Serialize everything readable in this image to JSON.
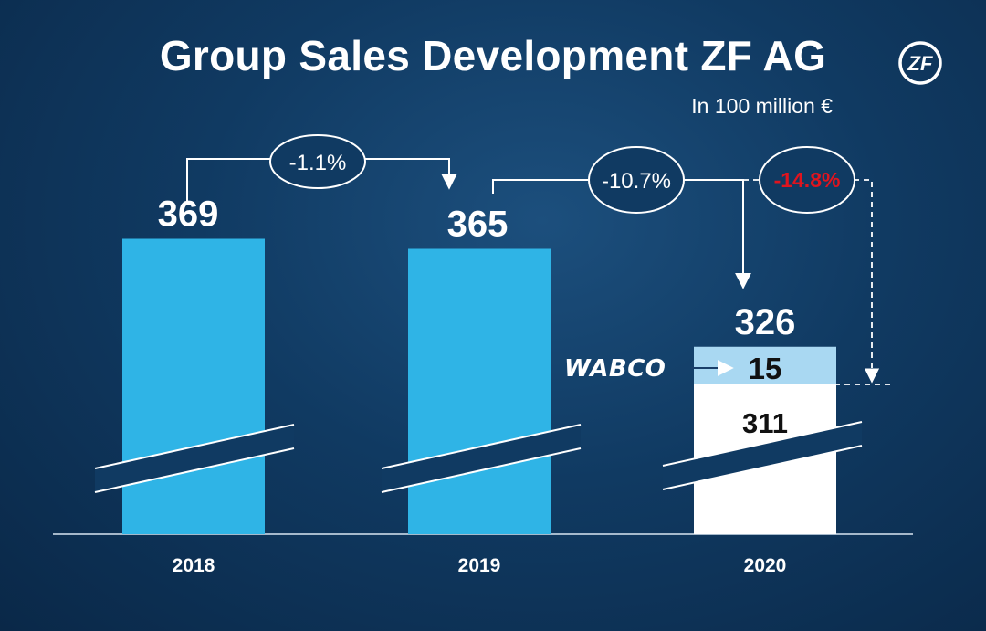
{
  "header": {
    "title": "Group Sales Development ZF AG",
    "unit_label": "In 100 million €",
    "logo_text": "ZF"
  },
  "colors": {
    "bar": "#2fb4e6",
    "bar_wabco": "#a9d8f2",
    "bar_base_2020": "#ffffff",
    "negative_highlight": "#e0141e",
    "background": "#103a62"
  },
  "chart_data": {
    "type": "bar",
    "title": "Group Sales Development ZF AG",
    "ylabel": "In 100 million €",
    "xlabel": "",
    "categories": [
      "2018",
      "2019",
      "2020"
    ],
    "values": [
      369,
      365,
      326
    ],
    "value_labels": [
      "369",
      "365",
      "326"
    ],
    "axis_break": true,
    "ylim": [
      300,
      380
    ],
    "stack_2020": {
      "base": {
        "value": 311,
        "label": "311"
      },
      "wabco": {
        "name": "WABCO",
        "value": 15,
        "label": "15"
      }
    },
    "annotations": [
      {
        "from": "2018",
        "to": "2019",
        "text": "-1.1%",
        "highlight": false
      },
      {
        "from": "2019",
        "to": "2020",
        "text": "-10.7%",
        "highlight": false
      },
      {
        "from": "2019",
        "to": "2020 excl. WABCO",
        "text": "-14.8%",
        "highlight": true
      }
    ]
  }
}
